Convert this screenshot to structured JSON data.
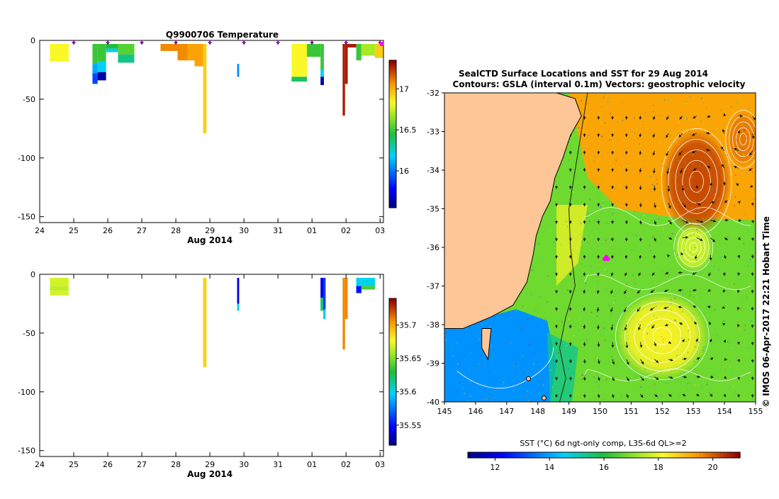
{
  "chart_data": [
    {
      "type": "heatmap",
      "title": "Q9900706  Temperature",
      "xlabel": "Aug 2014",
      "x_ticks": [
        "24",
        "25",
        "26",
        "27",
        "28",
        "29",
        "30",
        "31",
        "01",
        "02",
        "03"
      ],
      "y_ticks": [
        0,
        -50,
        -100,
        -150
      ],
      "ylim": [
        -155,
        0
      ],
      "xlim": [
        24,
        34.1
      ],
      "colorbar_ticks": [
        16,
        16.5,
        17
      ],
      "colorbar_range": [
        15.55,
        17.35
      ],
      "profile_markers_days": [
        25,
        26,
        27,
        28,
        29,
        30,
        31,
        32,
        33,
        34
      ],
      "profiles": [
        {
          "x0": 24.3,
          "x1": 24.85,
          "segs": [
            [
              -3,
              -18,
              16.85
            ]
          ]
        },
        {
          "x0": 25.55,
          "x1": 25.7,
          "segs": [
            [
              -3,
              -20,
              16.5
            ],
            [
              -20,
              -28,
              16.1
            ],
            [
              -28,
              -37,
              15.9
            ]
          ]
        },
        {
          "x0": 25.7,
          "x1": 25.95,
          "segs": [
            [
              -3,
              -18,
              16.5
            ],
            [
              -18,
              -27,
              16.2
            ],
            [
              -27,
              -34,
              15.6
            ]
          ]
        },
        {
          "x0": 25.95,
          "x1": 26.3,
          "segs": [
            [
              -3,
              -7,
              16.45
            ],
            [
              -7,
              -10,
              16.2
            ]
          ]
        },
        {
          "x0": 26.3,
          "x1": 26.78,
          "segs": [
            [
              -3,
              -12,
              16.55
            ],
            [
              -12,
              -19,
              16.35
            ]
          ]
        },
        {
          "x0": 27.55,
          "x1": 28.05,
          "segs": [
            [
              -3,
              -9,
              17.1
            ]
          ]
        },
        {
          "x0": 28.05,
          "x1": 28.35,
          "segs": [
            [
              -3,
              -17,
              17.1
            ]
          ]
        },
        {
          "x0": 28.35,
          "x1": 28.55,
          "segs": [
            [
              -3,
              -17,
              17.05
            ]
          ]
        },
        {
          "x0": 28.55,
          "x1": 28.8,
          "segs": [
            [
              -3,
              -22,
              17.05
            ]
          ]
        },
        {
          "x0": 28.8,
          "x1": 28.9,
          "segs": [
            [
              -3,
              -79,
              16.95
            ]
          ]
        },
        {
          "x0": 29.8,
          "x1": 29.86,
          "segs": [
            [
              -20,
              -31,
              16.05
            ]
          ]
        },
        {
          "x0": 31.4,
          "x1": 31.85,
          "segs": [
            [
              -3,
              -31,
              16.85
            ],
            [
              -31,
              -35,
              16.4
            ]
          ]
        },
        {
          "x0": 31.85,
          "x1": 32.25,
          "segs": [
            [
              -3,
              -14,
              16.5
            ]
          ]
        },
        {
          "x0": 32.25,
          "x1": 32.35,
          "segs": [
            [
              -3,
              -25,
              16.5
            ],
            [
              -25,
              -31,
              16.2
            ],
            [
              -31,
              -38,
              15.6
            ]
          ]
        },
        {
          "x0": 32.9,
          "x1": 32.97,
          "segs": [
            [
              -3,
              -64,
              17.3
            ]
          ]
        },
        {
          "x0": 32.97,
          "x1": 33.05,
          "segs": [
            [
              -3,
              -37,
              17.3
            ]
          ]
        },
        {
          "x0": 33.05,
          "x1": 33.3,
          "segs": [
            [
              -3,
              -6,
              17.3
            ]
          ]
        },
        {
          "x0": 33.3,
          "x1": 33.45,
          "segs": [
            [
              -3,
              -17,
              16.5
            ]
          ]
        },
        {
          "x0": 33.45,
          "x1": 33.85,
          "segs": [
            [
              -3,
              -13,
              16.7
            ]
          ]
        },
        {
          "x0": 33.85,
          "x1": 34.1,
          "segs": [
            [
              -3,
              -15,
              16.95
            ]
          ]
        }
      ]
    },
    {
      "type": "heatmap",
      "xlabel": "Aug 2014",
      "x_ticks": [
        "24",
        "25",
        "26",
        "27",
        "28",
        "29",
        "30",
        "31",
        "01",
        "02",
        "03"
      ],
      "y_ticks": [
        0,
        -50,
        -100,
        -150
      ],
      "ylim": [
        -155,
        0
      ],
      "xlim": [
        24,
        34.1
      ],
      "colorbar_ticks": [
        35.55,
        35.6,
        35.65,
        35.7
      ],
      "colorbar_range": [
        35.52,
        35.74
      ],
      "profiles": [
        {
          "x0": 24.3,
          "x1": 24.85,
          "segs": [
            [
              -3,
              -10,
              35.67
            ],
            [
              -10,
              -14,
              35.665
            ],
            [
              -14,
              -18,
              35.67
            ]
          ]
        },
        {
          "x0": 28.8,
          "x1": 28.9,
          "segs": [
            [
              -3,
              -79,
              35.69
            ]
          ]
        },
        {
          "x0": 29.8,
          "x1": 29.86,
          "segs": [
            [
              -3,
              -25,
              35.54
            ],
            [
              -25,
              -31,
              35.6
            ]
          ]
        },
        {
          "x0": 32.25,
          "x1": 32.33,
          "segs": [
            [
              -3,
              -20,
              35.54
            ],
            [
              -20,
              -31,
              35.62
            ]
          ]
        },
        {
          "x0": 32.33,
          "x1": 32.4,
          "segs": [
            [
              -3,
              -30,
              35.56
            ],
            [
              -30,
              -38,
              35.6
            ]
          ]
        },
        {
          "x0": 32.9,
          "x1": 32.97,
          "segs": [
            [
              -3,
              -64,
              35.71
            ]
          ]
        },
        {
          "x0": 32.97,
          "x1": 33.05,
          "segs": [
            [
              -3,
              -38,
              35.71
            ]
          ]
        },
        {
          "x0": 33.3,
          "x1": 33.45,
          "segs": [
            [
              -3,
              -10,
              35.6
            ],
            [
              -10,
              -16,
              35.55
            ]
          ]
        },
        {
          "x0": 33.45,
          "x1": 33.85,
          "segs": [
            [
              -3,
              -10,
              35.6
            ],
            [
              -10,
              -13,
              35.64
            ]
          ]
        }
      ]
    },
    {
      "type": "heatmap",
      "title": "SealCTD Surface Locations and SST for 29 Aug 2014",
      "subtitle": "Contours: GSLA (interval 0.1m) Vectors: geostrophic velocity",
      "x_ticks": [
        145,
        146,
        147,
        148,
        149,
        150,
        151,
        152,
        153,
        154,
        155
      ],
      "y_ticks": [
        -32,
        -33,
        -34,
        -35,
        -36,
        -37,
        -38,
        -39,
        -40
      ],
      "xlim": [
        145,
        155
      ],
      "ylim": [
        -40,
        -32
      ],
      "colorbar_label": "SST (°C) 6d ngt-only comp, L3S-6d QL>=2",
      "colorbar_ticks": [
        12,
        14,
        16,
        18,
        20
      ],
      "colorbar_range": [
        11,
        21
      ],
      "credit": "© IMOS 06-Apr-2017 22:21 Hobart Time",
      "eddies": [
        {
          "lon": 153.1,
          "lat": -34.3,
          "rx": 0.9,
          "ry": 1.1,
          "sst": 20.3,
          "dir": "ccw"
        },
        {
          "lon": 152.0,
          "lat": -38.3,
          "rx": 1.2,
          "ry": 0.9,
          "sst": 18.3,
          "dir": "ccw"
        },
        {
          "lon": 153.0,
          "lat": -36.0,
          "rx": 0.5,
          "ry": 0.5,
          "sst": 17.8,
          "dir": "cw"
        },
        {
          "lon": 154.6,
          "lat": -33.2,
          "rx": 0.45,
          "ry": 0.6,
          "sst": 19.8,
          "dir": "cw"
        }
      ],
      "coast": [
        [
          148.6,
          -32
        ],
        [
          149.2,
          -32.15
        ],
        [
          149.4,
          -32.6
        ],
        [
          149.05,
          -33.1
        ],
        [
          148.8,
          -33.7
        ],
        [
          148.55,
          -34.2
        ],
        [
          148.4,
          -34.8
        ],
        [
          148.15,
          -35.2
        ],
        [
          147.95,
          -35.7
        ],
        [
          147.85,
          -36.2
        ],
        [
          147.65,
          -36.9
        ],
        [
          147.2,
          -37.5
        ],
        [
          146.5,
          -37.8
        ],
        [
          145.6,
          -38.1
        ],
        [
          145,
          -38.1
        ]
      ],
      "sst_regions": [
        {
          "name": "bass-strait",
          "sst": 13.8
        },
        {
          "name": "shelf-north",
          "sst": 18.3
        },
        {
          "name": "tasman-central",
          "sst": 16.8
        },
        {
          "name": "east-australian-current",
          "sst": 19.3
        }
      ],
      "seal_locations": [
        [
          150.15,
          -36.3
        ],
        [
          150.2,
          -36.25
        ],
        [
          150.25,
          -36.3
        ]
      ]
    }
  ]
}
